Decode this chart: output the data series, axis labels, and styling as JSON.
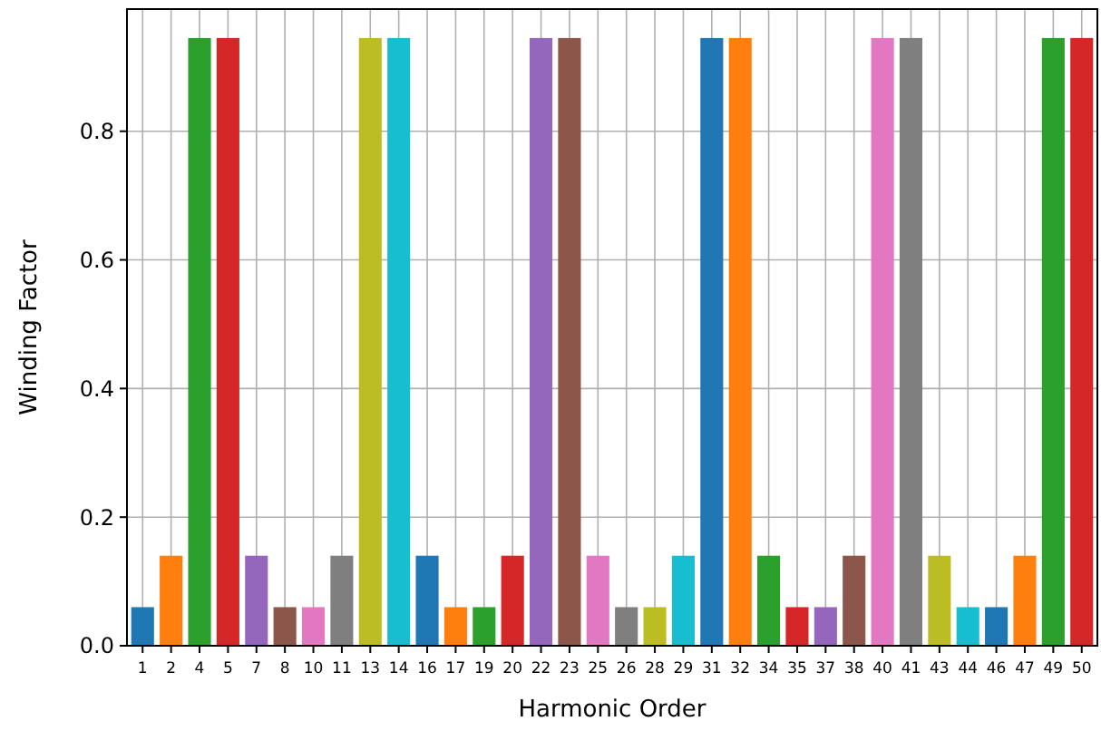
{
  "chart_data": {
    "type": "bar",
    "xlabel": "Harmonic Order",
    "ylabel": "Winding Factor",
    "categories": [
      "1",
      "2",
      "4",
      "5",
      "7",
      "8",
      "10",
      "11",
      "13",
      "14",
      "16",
      "17",
      "19",
      "20",
      "22",
      "23",
      "25",
      "26",
      "28",
      "29",
      "31",
      "32",
      "34",
      "35",
      "37",
      "38",
      "40",
      "41",
      "43",
      "44",
      "46",
      "47",
      "49",
      "50"
    ],
    "values": [
      0.06,
      0.14,
      0.945,
      0.945,
      0.14,
      0.06,
      0.06,
      0.14,
      0.945,
      0.945,
      0.14,
      0.06,
      0.06,
      0.14,
      0.945,
      0.945,
      0.14,
      0.06,
      0.06,
      0.14,
      0.945,
      0.945,
      0.14,
      0.06,
      0.06,
      0.14,
      0.945,
      0.945,
      0.14,
      0.06,
      0.06,
      0.14,
      0.945,
      0.945
    ],
    "colors": [
      "#1f77b4",
      "#ff7f0e",
      "#2ca02c",
      "#d62728",
      "#9467bd",
      "#8c564b",
      "#e377c2",
      "#7f7f7f",
      "#bcbd22",
      "#17becf",
      "#1f77b4",
      "#ff7f0e",
      "#2ca02c",
      "#d62728",
      "#9467bd",
      "#8c564b",
      "#e377c2",
      "#7f7f7f",
      "#bcbd22",
      "#17becf",
      "#1f77b4",
      "#ff7f0e",
      "#2ca02c",
      "#d62728",
      "#9467bd",
      "#8c564b",
      "#e377c2",
      "#7f7f7f",
      "#bcbd22",
      "#17becf",
      "#1f77b4",
      "#ff7f0e",
      "#2ca02c",
      "#d62728"
    ],
    "ylim": [
      0,
      0.99
    ],
    "yticks": [
      {
        "value": 0,
        "label": "0.0"
      },
      0.2,
      0.4,
      0.6,
      0.8
    ],
    "grid": true
  }
}
